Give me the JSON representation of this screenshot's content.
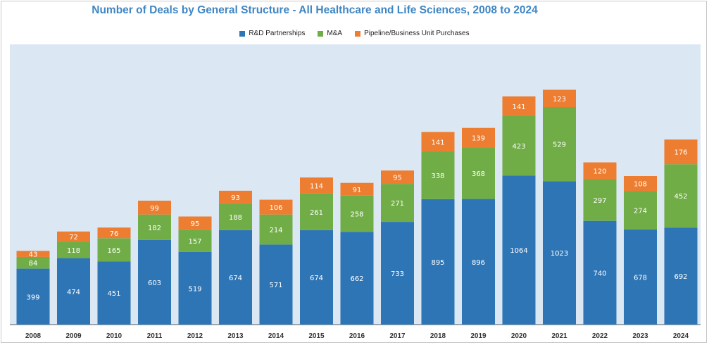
{
  "chart_data": {
    "type": "bar",
    "stacked": true,
    "title": "Number of Deals by General Structure - All Healthcare and Life Sciences, 2008 to 2024",
    "legend_position": "top",
    "categories": [
      "2008",
      "2009",
      "2010",
      "2011",
      "2012",
      "2013",
      "2014",
      "2015",
      "2016",
      "2017",
      "2018",
      "2019",
      "2020",
      "2021",
      "2022",
      "2023",
      "2024"
    ],
    "series": [
      {
        "name": "R&D Partnerships",
        "color": "#2e75b6",
        "values": [
          399,
          474,
          451,
          603,
          519,
          674,
          571,
          674,
          662,
          733,
          895,
          896,
          1064,
          1023,
          740,
          678,
          692
        ]
      },
      {
        "name": "M&A",
        "color": "#70ad47",
        "values": [
          84,
          118,
          165,
          182,
          157,
          188,
          214,
          261,
          258,
          271,
          338,
          368,
          423,
          529,
          297,
          274,
          452
        ]
      },
      {
        "name": "Pipeline/Business Unit Purchases",
        "color": "#ed7d31",
        "values": [
          43,
          72,
          76,
          99,
          95,
          93,
          106,
          114,
          91,
          95,
          141,
          139,
          141,
          123,
          120,
          108,
          176
        ]
      }
    ],
    "ylim": [
      0,
      1800
    ],
    "grid": false
  }
}
